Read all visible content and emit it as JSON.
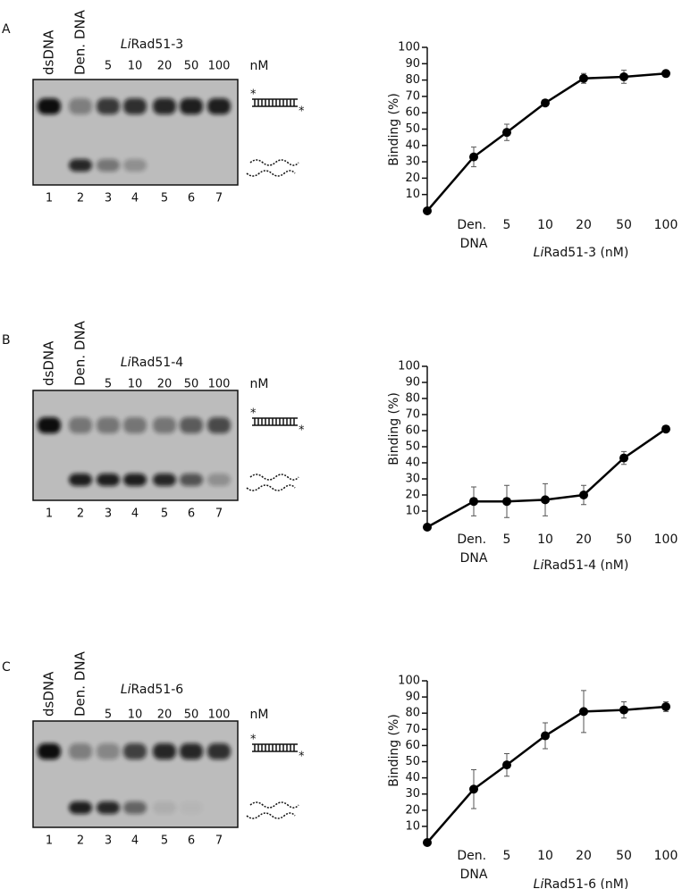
{
  "gels": [
    {
      "label": "A",
      "title": [
        "Li",
        "Rad51-3"
      ],
      "lanes": [
        "dsDNA",
        "Den. DNA",
        "5",
        "10",
        "20",
        "50",
        "100"
      ],
      "unit": "nM",
      "lane_numbers": [
        1,
        2,
        3,
        4,
        5,
        6,
        7
      ]
    },
    {
      "label": "B",
      "title": [
        "Li",
        "Rad51-4"
      ],
      "lanes": [
        "dsDNA",
        "Den. DNA",
        "5",
        "10",
        "20",
        "50",
        "100"
      ],
      "unit": "nM",
      "lane_numbers": [
        1,
        2,
        3,
        4,
        5,
        6,
        7
      ]
    },
    {
      "label": "C",
      "title": [
        "Li",
        "Rad51-6"
      ],
      "lanes": [
        "dsDNA",
        "Den. DNA",
        "5",
        "10",
        "20",
        "50",
        "100"
      ],
      "unit": "nM",
      "lane_numbers": [
        1,
        2,
        3,
        4,
        5,
        6,
        7
      ]
    }
  ],
  "chart_data": [
    {
      "type": "line",
      "y_label": "Binding (%)",
      "x_label": [
        "Li",
        "Rad51-3 (nM)"
      ],
      "categories": [
        null,
        "Den. DNA",
        "5",
        "10",
        "20",
        "50",
        "100"
      ],
      "values": [
        0,
        33,
        48,
        66,
        81,
        82,
        84
      ],
      "errors": [
        0,
        6,
        5,
        1,
        3,
        4,
        1
      ],
      "color": "#000000",
      "ylim": [
        0,
        100
      ],
      "yticks": [
        10,
        20,
        30,
        40,
        50,
        60,
        70,
        80,
        90,
        100
      ]
    },
    {
      "type": "line",
      "y_label": "Binding (%)",
      "x_label": [
        "Li",
        "Rad51-4 (nM)"
      ],
      "categories": [
        null,
        "Den. DNA",
        "5",
        "10",
        "20",
        "50",
        "100"
      ],
      "values": [
        0,
        16,
        16,
        17,
        20,
        43,
        61
      ],
      "errors": [
        0,
        9,
        10,
        10,
        6,
        4,
        1
      ],
      "color": "#000000",
      "ylim": [
        0,
        100
      ],
      "yticks": [
        10,
        20,
        30,
        40,
        50,
        60,
        70,
        80,
        90,
        100
      ]
    },
    {
      "type": "line",
      "y_label": "Binding (%)",
      "x_label": [
        "Li",
        "Rad51-6 (nM)"
      ],
      "categories": [
        null,
        "Den. DNA",
        "5",
        "10",
        "20",
        "50",
        "100"
      ],
      "values": [
        0,
        33,
        48,
        66,
        81,
        82,
        84
      ],
      "errors": [
        0,
        12,
        7,
        8,
        13,
        5,
        3
      ],
      "color": "#000000",
      "ylim": [
        0,
        100
      ],
      "yticks": [
        10,
        20,
        30,
        40,
        50,
        60,
        70,
        80,
        90,
        100
      ]
    }
  ]
}
